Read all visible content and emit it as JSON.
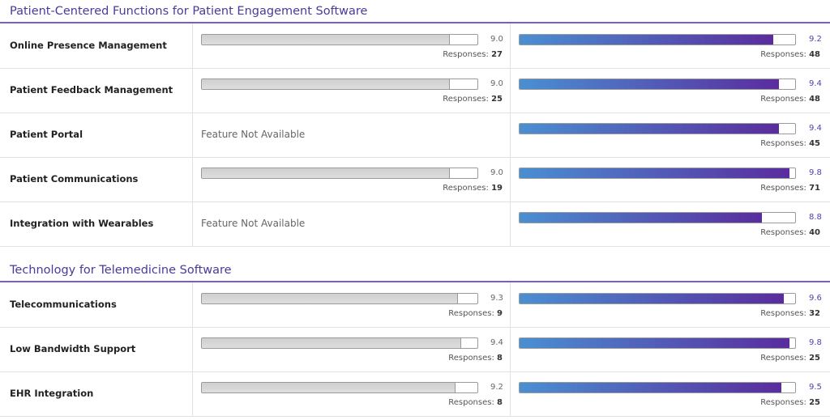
{
  "xlim": [
    0,
    10
  ],
  "responses_label": "Responses:",
  "sections": [
    {
      "title": "Patient-Centered Functions for Patient Engagement Software",
      "rows": [
        {
          "feature": "Online Presence Management",
          "left": {
            "score": 9.0,
            "score_label": "9.0",
            "responses": 27
          },
          "right": {
            "score": 9.2,
            "score_label": "9.2",
            "responses": 48
          }
        },
        {
          "feature": "Patient Feedback Management",
          "left": {
            "score": 9.0,
            "score_label": "9.0",
            "responses": 25
          },
          "right": {
            "score": 9.4,
            "score_label": "9.4",
            "responses": 48
          }
        },
        {
          "feature": "Patient Portal",
          "left": {
            "unavailable": "Feature Not Available"
          },
          "right": {
            "score": 9.4,
            "score_label": "9.4",
            "responses": 45
          }
        },
        {
          "feature": "Patient Communications",
          "left": {
            "score": 9.0,
            "score_label": "9.0",
            "responses": 19
          },
          "right": {
            "score": 9.8,
            "score_label": "9.8",
            "responses": 71
          }
        },
        {
          "feature": "Integration with Wearables",
          "left": {
            "unavailable": "Feature Not Available"
          },
          "right": {
            "score": 8.8,
            "score_label": "8.8",
            "responses": 40
          }
        }
      ]
    },
    {
      "title": "Technology for Telemedicine Software",
      "rows": [
        {
          "feature": "Telecommunications",
          "left": {
            "score": 9.3,
            "score_label": "9.3",
            "responses": 9
          },
          "right": {
            "score": 9.6,
            "score_label": "9.6",
            "responses": 32
          }
        },
        {
          "feature": "Low Bandwidth Support",
          "left": {
            "score": 9.4,
            "score_label": "9.4",
            "responses": 8
          },
          "right": {
            "score": 9.8,
            "score_label": "9.8",
            "responses": 25
          }
        },
        {
          "feature": "EHR Integration",
          "left": {
            "score": 9.2,
            "score_label": "9.2",
            "responses": 8
          },
          "right": {
            "score": 9.5,
            "score_label": "9.5",
            "responses": 25
          }
        }
      ]
    }
  ]
}
